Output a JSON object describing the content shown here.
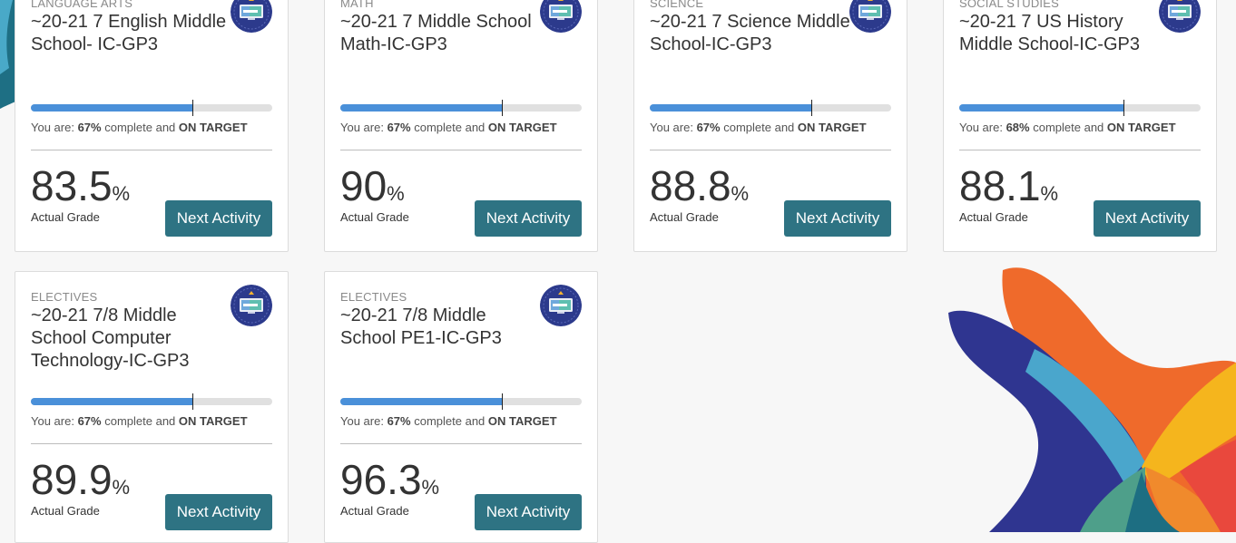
{
  "colors": {
    "accent": "#2e7383",
    "progress": "#4a90d9",
    "badge": "#2c3a8c"
  },
  "common": {
    "status_prefix": "You are:",
    "status_middle": "complete and",
    "status_target": "ON TARGET",
    "grade_label": "Actual Grade",
    "percent_sign": "%",
    "next_label": "Next Activity"
  },
  "courses": [
    {
      "subject": "LANGUAGE ARTS",
      "title": "~20-21 7 English Middle School- IC-GP3",
      "progress_text": "67%",
      "progress": 0.67,
      "grade": "83.5"
    },
    {
      "subject": "MATH",
      "title": "~20-21 7 Middle School Math-IC-GP3",
      "progress_text": "67%",
      "progress": 0.67,
      "grade": "90"
    },
    {
      "subject": "SCIENCE",
      "title": "~20-21 7 Science Middle School-IC-GP3",
      "progress_text": "67%",
      "progress": 0.67,
      "grade": "88.8"
    },
    {
      "subject": "SOCIAL STUDIES",
      "title": "~20-21 7 US History Middle School-IC-GP3",
      "progress_text": "68%",
      "progress": 0.68,
      "grade": "88.1"
    },
    {
      "subject": "ELECTIVES",
      "title": "~20-21 7/8 Middle School Computer Technology-IC-GP3",
      "progress_text": "67%",
      "progress": 0.67,
      "grade": "89.9"
    },
    {
      "subject": "ELECTIVES",
      "title": "~20-21 7/8 Middle School PE1-IC-GP3",
      "progress_text": "67%",
      "progress": 0.67,
      "grade": "96.3"
    }
  ]
}
